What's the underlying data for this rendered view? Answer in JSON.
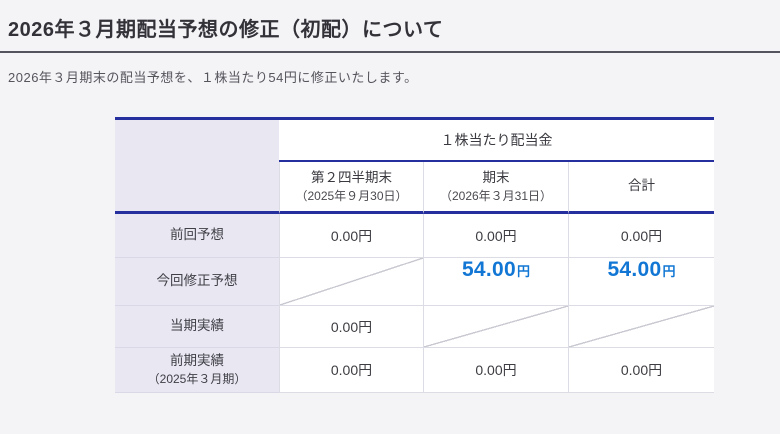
{
  "page": {
    "title": "2026年３月期配当予想の修正（初配）について",
    "lead": "2026年３月期末の配当予想を、１株当たり54円に修正いたします。"
  },
  "table": {
    "group_header": "１株当たり配当金",
    "col_headers": [
      {
        "label": "第２四半期末",
        "date": "（2025年９月30日）"
      },
      {
        "label": "期末",
        "date": "（2026年３月31日）"
      },
      {
        "label": "合計",
        "date": ""
      }
    ],
    "rows": [
      {
        "label": "前回予想",
        "note": "",
        "cells": [
          {
            "text": "0.00円"
          },
          {
            "text": "0.00円"
          },
          {
            "text": "0.00円"
          }
        ]
      },
      {
        "label": "今回修正予想",
        "note": "",
        "cells": [
          {
            "diagonal": true
          },
          {
            "value": "54.00",
            "unit": "円"
          },
          {
            "value": "54.00",
            "unit": "円"
          }
        ]
      },
      {
        "label": "当期実績",
        "note": "",
        "cells": [
          {
            "text": "0.00円"
          },
          {
            "diagonal": true
          },
          {
            "diagonal": true
          }
        ]
      },
      {
        "label": "前期実績",
        "note": "（2025年３月期）",
        "cells": [
          {
            "text": "0.00円"
          },
          {
            "text": "0.00円"
          },
          {
            "text": "0.00円"
          }
        ]
      }
    ]
  },
  "colors": {
    "accent_border": "#262f9e",
    "highlight_value": "#1277d4",
    "label_bg": "#e8e7f2",
    "page_bg": "#f4f4f7"
  }
}
